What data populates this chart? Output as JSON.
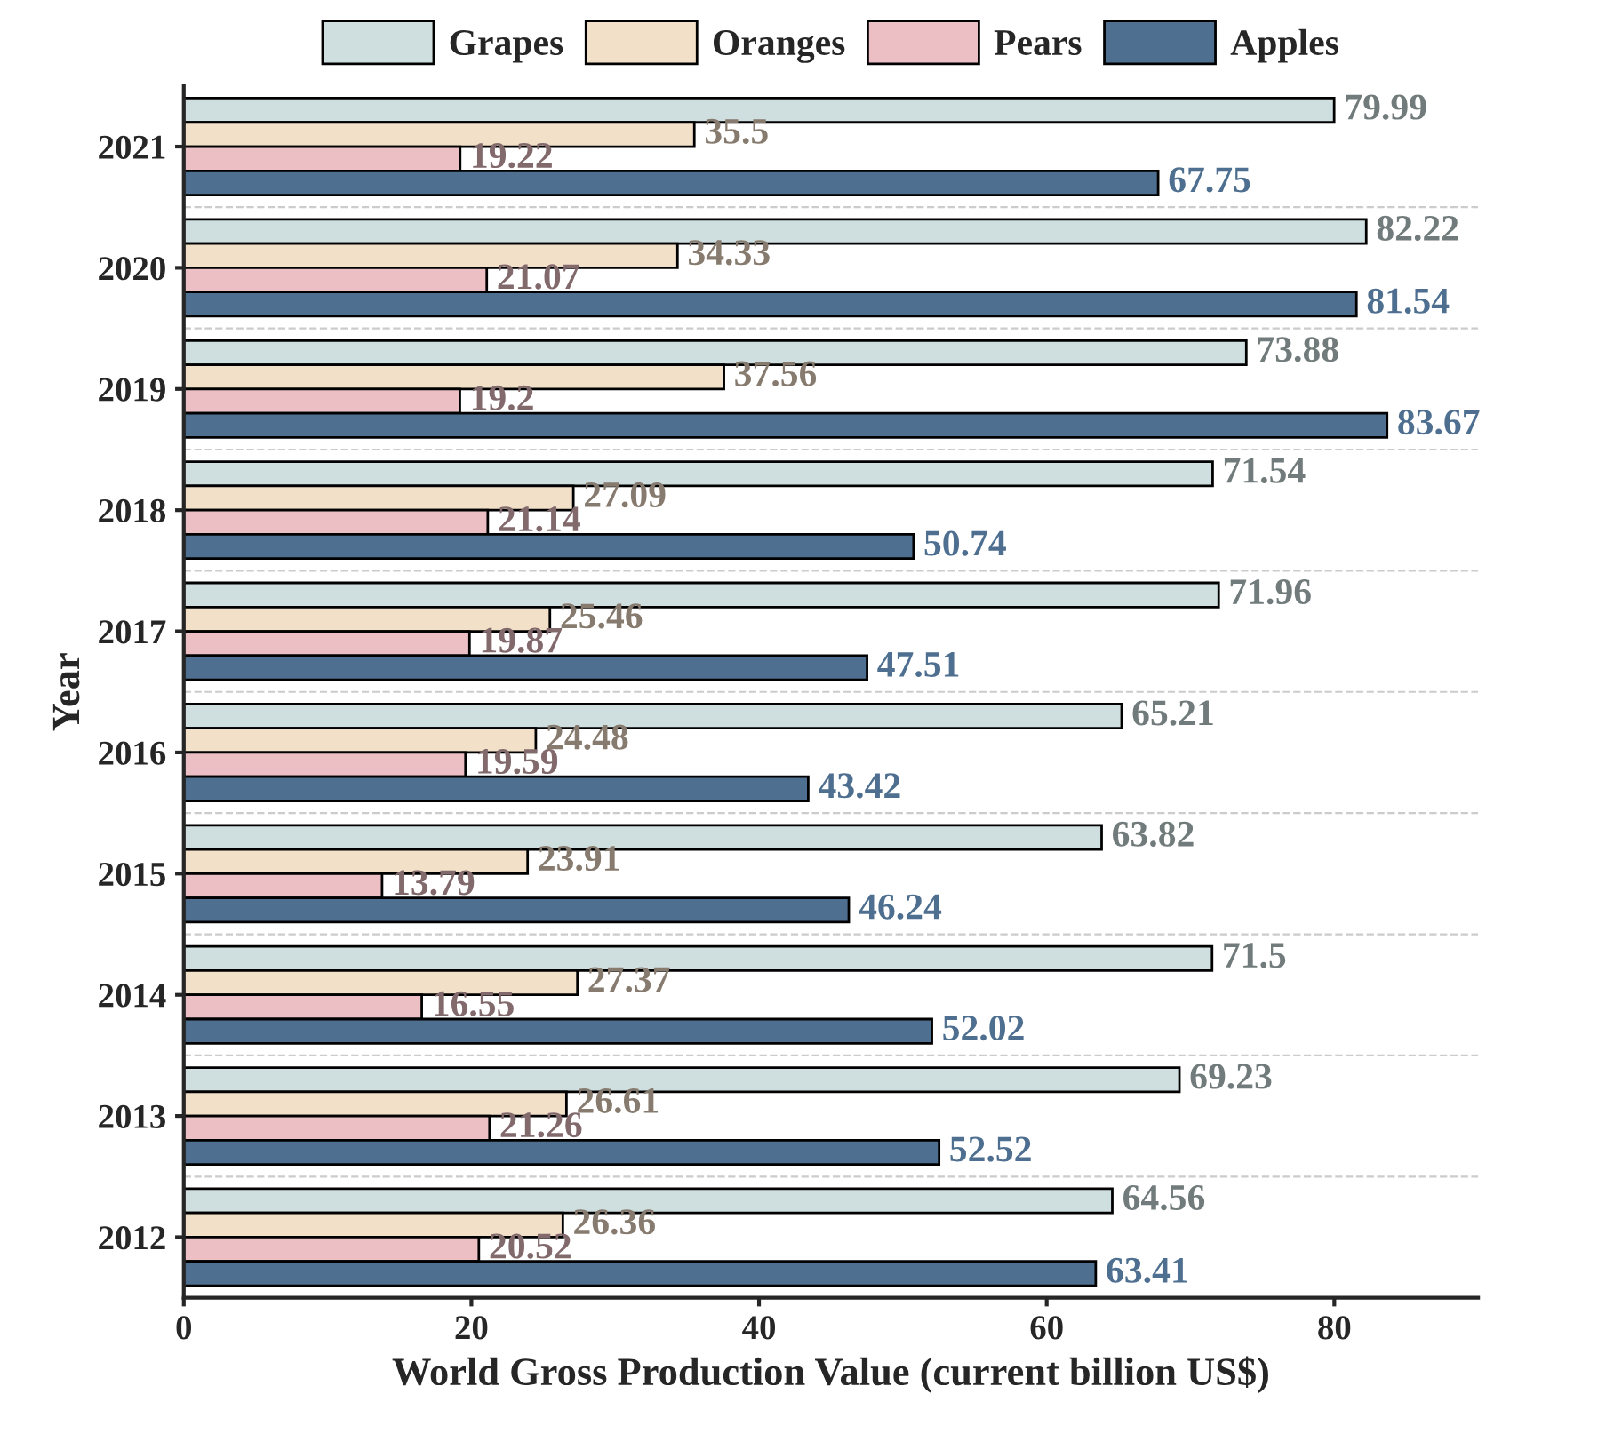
{
  "chart_data": {
    "type": "bar",
    "orientation": "horizontal",
    "categories": [
      "2021",
      "2020",
      "2019",
      "2018",
      "2017",
      "2016",
      "2015",
      "2014",
      "2013",
      "2012"
    ],
    "series": [
      {
        "name": "Grapes",
        "color": "#cfdfe0",
        "values": [
          79.99,
          82.22,
          73.88,
          71.54,
          71.96,
          65.21,
          63.82,
          71.5,
          69.23,
          64.56
        ]
      },
      {
        "name": "Oranges",
        "color": "#f3e0c8",
        "values": [
          35.5,
          34.33,
          37.56,
          27.09,
          25.46,
          24.48,
          23.91,
          27.37,
          26.61,
          26.36
        ]
      },
      {
        "name": "Pears",
        "color": "#ebbfc4",
        "values": [
          19.22,
          21.07,
          19.2,
          21.14,
          19.87,
          19.59,
          13.79,
          16.55,
          21.26,
          20.52
        ]
      },
      {
        "name": "Apples",
        "color": "#4e6f8f",
        "values": [
          67.75,
          81.54,
          83.67,
          50.74,
          47.51,
          43.42,
          46.24,
          52.02,
          52.52,
          63.41
        ]
      }
    ],
    "xlabel": "World Gross Production Value (current billion US$)",
    "ylabel": "Year",
    "xlim": [
      0,
      90
    ],
    "xticks": [
      0,
      20,
      40,
      60,
      80
    ],
    "data_labels": true,
    "legend": "top",
    "grid": "y"
  }
}
